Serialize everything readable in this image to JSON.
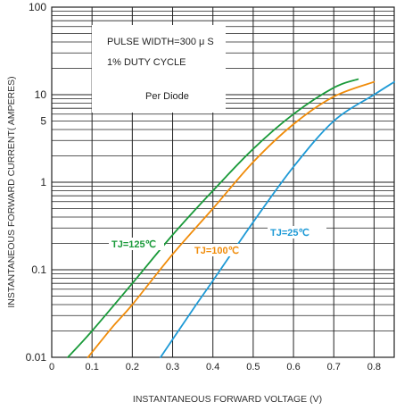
{
  "chart_data": {
    "type": "line",
    "xlabel": "INSTANTANEOUS FORWARD VOLTAGE (V)",
    "ylabel": "INSTANTANEOUS FORWARD CURRENT( AMPERES)",
    "xlim": [
      0,
      0.85
    ],
    "ylim": [
      0.01,
      100
    ],
    "yscale": "log",
    "grid": true,
    "x_ticks": [
      "0",
      "0.1",
      "0.2",
      "0.3",
      "0.4",
      "0.5",
      "0.6",
      "0.7",
      "0.8"
    ],
    "y_ticks": [
      {
        "value": 100,
        "label": "100"
      },
      {
        "value": 10,
        "label": "10"
      },
      {
        "value": 5,
        "label": "5"
      },
      {
        "value": 1,
        "label": "1"
      },
      {
        "value": 0.1,
        "label": "0.1"
      },
      {
        "value": 0.01,
        "label": "0.01"
      }
    ],
    "annotations": [
      "PULSE WIDTH=300 μ S",
      "1% DUTY CYCLE",
      "Per Diode"
    ],
    "series": [
      {
        "name": "TJ=125℃",
        "color": "#1a9a3a",
        "x": [
          0.04,
          0.1,
          0.2,
          0.3,
          0.4,
          0.5,
          0.6,
          0.7,
          0.76
        ],
        "y": [
          0.01,
          0.02,
          0.07,
          0.25,
          0.8,
          2.4,
          6.0,
          12.0,
          15.0
        ]
      },
      {
        "name": "TJ=100℃",
        "color": "#f08c0a",
        "x": [
          0.09,
          0.15,
          0.2,
          0.3,
          0.4,
          0.5,
          0.6,
          0.7,
          0.8
        ],
        "y": [
          0.01,
          0.022,
          0.04,
          0.15,
          0.5,
          1.7,
          4.6,
          9.5,
          14.0
        ]
      },
      {
        "name": "TJ=25℃",
        "color": "#1e9ad6",
        "x": [
          0.27,
          0.35,
          0.4,
          0.5,
          0.6,
          0.7,
          0.8,
          0.85
        ],
        "y": [
          0.01,
          0.035,
          0.075,
          0.35,
          1.5,
          5.0,
          10.0,
          14.0
        ]
      }
    ]
  }
}
